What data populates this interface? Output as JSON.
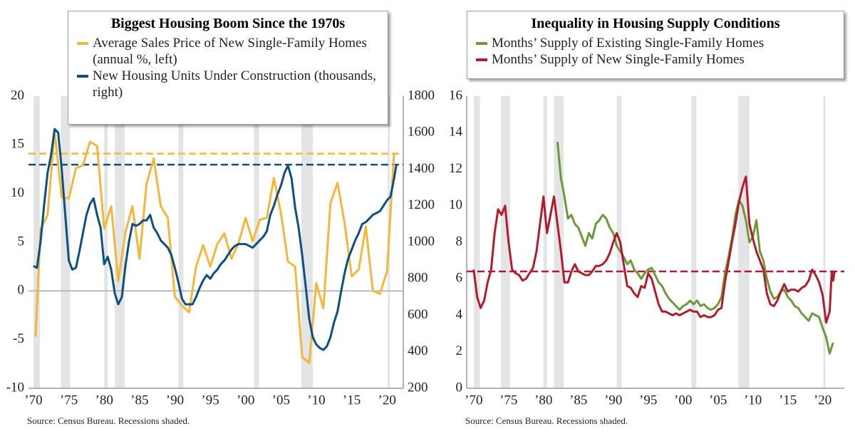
{
  "chart_data": [
    {
      "type": "line",
      "title": "Biggest Housing Boom Since the 1970s",
      "source": "Source: Census Bureau. Recessions shaded.",
      "xlim": [
        1969.3,
        2022.3
      ],
      "xticks": [
        {
          "value": 1970,
          "label": "’70"
        },
        {
          "value": 1975,
          "label": "’75"
        },
        {
          "value": 1980,
          "label": "’80"
        },
        {
          "value": 1985,
          "label": "’85"
        },
        {
          "value": 1990,
          "label": "’90"
        },
        {
          "value": 1995,
          "label": "’95"
        },
        {
          "value": 2000,
          "label": "’00"
        },
        {
          "value": 2005,
          "label": "’05"
        },
        {
          "value": 2010,
          "label": "’10"
        },
        {
          "value": 2015,
          "label": "’15"
        },
        {
          "value": 2020,
          "label": "’20"
        }
      ],
      "ylim": [
        -10,
        20
      ],
      "yticks": [
        -10,
        -5,
        0,
        5,
        10,
        15,
        20
      ],
      "y2lim": [
        200,
        1800
      ],
      "y2ticks": [
        200,
        400,
        600,
        800,
        1000,
        1200,
        1400,
        1600,
        1800
      ],
      "zero_line": true,
      "recessions": [
        {
          "start": 1970.0,
          "end": 1970.9
        },
        {
          "start": 1973.9,
          "end": 1975.2
        },
        {
          "start": 1980.0,
          "end": 1980.5
        },
        {
          "start": 1981.5,
          "end": 1982.9
        },
        {
          "start": 1990.5,
          "end": 1991.2
        },
        {
          "start": 2001.2,
          "end": 2001.9
        },
        {
          "start": 2007.9,
          "end": 2009.5
        },
        {
          "start": 2020.1,
          "end": 2020.4
        }
      ],
      "reference_lines": [
        {
          "value": 14.1,
          "axis": "y",
          "color": "#f3b73b"
        },
        {
          "value": 1425,
          "axis": "y2",
          "color": "#0d4f80"
        }
      ],
      "series": [
        {
          "name": "Average Sales Price of New Single-Family Homes (annual %, left)",
          "color": "#f3b73b",
          "axis": "y",
          "x": [
            1970.3,
            1971,
            1972,
            1973,
            1974,
            1975,
            1976,
            1977,
            1978,
            1979,
            1980,
            1981,
            1982,
            1983,
            1984,
            1985,
            1986,
            1987,
            1988,
            1989,
            1990,
            1991,
            1992,
            1993,
            1994,
            1995,
            1996,
            1997,
            1998,
            1999,
            2000,
            2001,
            2002,
            2003,
            2004,
            2005,
            2006,
            2007,
            2008,
            2009,
            2010,
            2011,
            2012,
            2013,
            2014,
            2015,
            2016,
            2017,
            2018,
            2019,
            2020,
            2021
          ],
          "values": [
            -4.7,
            6.3,
            7.8,
            16.4,
            9.6,
            9.5,
            12.6,
            12.9,
            15.3,
            14.9,
            6.4,
            8.7,
            1.0,
            6.0,
            8.7,
            3.3,
            11.0,
            13.6,
            8.7,
            7.5,
            -0.6,
            -1.5,
            -2.2,
            2.5,
            4.7,
            2.5,
            4.8,
            5.9,
            3.3,
            4.9,
            7.5,
            5.1,
            7.3,
            7.5,
            11.6,
            8.0,
            3.0,
            2.5,
            -6.8,
            -7.4,
            0.8,
            -1.8,
            9.0,
            11.1,
            7.0,
            1.5,
            2.2,
            6.6,
            0.0,
            -0.3,
            2.0,
            14.2
          ]
        },
        {
          "name": "New Housing Units Under Construction (thousands, right)",
          "color": "#0d4f80",
          "axis": "y2",
          "x": [
            1970,
            1970.5,
            1971,
            1971.5,
            1972,
            1972.5,
            1973,
            1973.5,
            1974,
            1974.5,
            1975,
            1975.5,
            1976,
            1976.5,
            1977,
            1977.5,
            1978,
            1978.5,
            1979,
            1979.5,
            1980,
            1980.5,
            1981,
            1981.5,
            1982,
            1982.5,
            1983,
            1983.5,
            1984,
            1984.5,
            1985,
            1985.5,
            1986,
            1986.5,
            1987,
            1987.5,
            1988,
            1988.5,
            1989,
            1989.5,
            1990,
            1990.5,
            1991,
            1991.5,
            1992,
            1992.5,
            1993,
            1993.5,
            1994,
            1994.5,
            1995,
            1995.5,
            1996,
            1996.5,
            1997,
            1997.5,
            1998,
            1998.5,
            1999,
            1999.5,
            2000,
            2000.5,
            2001,
            2001.5,
            2002,
            2002.5,
            2003,
            2003.5,
            2004,
            2004.5,
            2005,
            2005.5,
            2006,
            2006.5,
            2007,
            2007.5,
            2008,
            2008.5,
            2009,
            2009.5,
            2010,
            2010.5,
            2011,
            2011.5,
            2012,
            2012.5,
            2013,
            2013.5,
            2014,
            2014.5,
            2015,
            2015.5,
            2016,
            2016.5,
            2017,
            2017.5,
            2018,
            2018.5,
            2019,
            2019.5,
            2020,
            2020.5,
            2021,
            2021.3
          ],
          "values": [
            870,
            860,
            1000,
            1200,
            1380,
            1480,
            1620,
            1600,
            1400,
            1150,
            900,
            850,
            860,
            950,
            1050,
            1150,
            1210,
            1240,
            1150,
            1080,
            880,
            920,
            850,
            720,
            660,
            700,
            870,
            1000,
            1100,
            1090,
            1100,
            1120,
            1120,
            1150,
            1080,
            1050,
            1010,
            990,
            970,
            930,
            860,
            780,
            690,
            660,
            660,
            660,
            700,
            750,
            790,
            820,
            800,
            830,
            850,
            880,
            900,
            930,
            960,
            980,
            990,
            990,
            990,
            980,
            970,
            990,
            1010,
            1030,
            1060,
            1150,
            1200,
            1260,
            1310,
            1380,
            1420,
            1350,
            1190,
            1080,
            930,
            760,
            580,
            480,
            440,
            420,
            410,
            430,
            480,
            560,
            620,
            730,
            830,
            910,
            960,
            1010,
            1050,
            1100,
            1110,
            1130,
            1150,
            1160,
            1170,
            1200,
            1230,
            1250,
            1350,
            1420
          ]
        }
      ]
    },
    {
      "type": "line",
      "title": "Inequality in Housing Supply Conditions",
      "source": "Source: Census Bureau. Recessions shaded.",
      "xlim": [
        1969,
        2023.1
      ],
      "xticks": [
        {
          "value": 1970,
          "label": "’70"
        },
        {
          "value": 1975,
          "label": "’75"
        },
        {
          "value": 1980,
          "label": "’80"
        },
        {
          "value": 1985,
          "label": "’85"
        },
        {
          "value": 1990,
          "label": "’90"
        },
        {
          "value": 1995,
          "label": "’95"
        },
        {
          "value": 2000,
          "label": "’00"
        },
        {
          "value": 2005,
          "label": "’05"
        },
        {
          "value": 2010,
          "label": "’10"
        },
        {
          "value": 2015,
          "label": "’15"
        },
        {
          "value": 2020,
          "label": "’20"
        }
      ],
      "ylim": [
        0,
        16
      ],
      "yticks": [
        0,
        2,
        4,
        6,
        8,
        10,
        12,
        14,
        16
      ],
      "recessions": [
        {
          "start": 1970.0,
          "end": 1970.9
        },
        {
          "start": 1973.9,
          "end": 1975.2
        },
        {
          "start": 1980.0,
          "end": 1980.5
        },
        {
          "start": 1981.5,
          "end": 1982.9
        },
        {
          "start": 1990.5,
          "end": 1991.2
        },
        {
          "start": 2001.2,
          "end": 2001.9
        },
        {
          "start": 2007.9,
          "end": 2009.5
        },
        {
          "start": 2020.1,
          "end": 2020.4
        }
      ],
      "reference_lines": [
        {
          "value": 6.4,
          "axis": "y",
          "color": "#b01c2e"
        }
      ],
      "series": [
        {
          "name": "Months’ Supply of Existing Single-Family Homes",
          "color": "#6a9a3a",
          "axis": "y",
          "x": [
            1982,
            1982.5,
            1983,
            1983.5,
            1984,
            1984.5,
            1985,
            1985.5,
            1986,
            1986.5,
            1987,
            1987.5,
            1988,
            1988.5,
            1989,
            1989.5,
            1990,
            1990.5,
            1991,
            1991.5,
            1992,
            1992.5,
            1993,
            1993.5,
            1994,
            1994.5,
            1995,
            1995.5,
            1996,
            1996.5,
            1997,
            1997.5,
            1998,
            1998.5,
            1999,
            1999.5,
            2000,
            2000.5,
            2001,
            2001.5,
            2002,
            2002.5,
            2003,
            2003.5,
            2004,
            2004.5,
            2005,
            2005.5,
            2006,
            2006.5,
            2007,
            2007.5,
            2008,
            2008.5,
            2009,
            2009.5,
            2010,
            2010.5,
            2011,
            2011.5,
            2012,
            2012.5,
            2013,
            2013.5,
            2014,
            2014.5,
            2015,
            2015.5,
            2016,
            2016.5,
            2017,
            2017.5,
            2018,
            2018.5,
            2019,
            2019.5,
            2020,
            2020.5,
            2021,
            2021.5
          ],
          "values": [
            13.5,
            11.5,
            10.5,
            9.3,
            9.5,
            9.0,
            8.8,
            8.3,
            7.8,
            8.5,
            8.2,
            9.0,
            9.2,
            9.5,
            9.3,
            8.8,
            8.5,
            7.8,
            7.5,
            7.2,
            6.8,
            7.0,
            6.5,
            6.3,
            6.0,
            6.3,
            6.5,
            6.6,
            6.2,
            5.8,
            5.6,
            5.2,
            4.9,
            4.7,
            4.5,
            4.3,
            4.5,
            4.6,
            4.8,
            4.6,
            4.8,
            4.5,
            4.6,
            4.4,
            4.3,
            4.4,
            4.6,
            5.0,
            6.3,
            7.2,
            8.2,
            9.5,
            10.3,
            10.0,
            9.2,
            8.0,
            8.3,
            9.2,
            7.5,
            7.0,
            6.0,
            5.3,
            4.9,
            5.0,
            5.3,
            5.4,
            5.0,
            4.8,
            4.5,
            4.4,
            4.1,
            3.9,
            3.7,
            4.1,
            4.0,
            3.9,
            3.3,
            2.8,
            1.9,
            2.5
          ]
        },
        {
          "name": "Months’ Supply of New Single-Family Homes",
          "color": "#b01c2e",
          "axis": "y",
          "x": [
            1970,
            1970.5,
            1971,
            1971.5,
            1972,
            1972.5,
            1973,
            1973.5,
            1974,
            1974.5,
            1975,
            1975.5,
            1976,
            1976.5,
            1977,
            1977.5,
            1978,
            1978.5,
            1979,
            1979.5,
            1980,
            1980.5,
            1981,
            1981.5,
            1982,
            1982.5,
            1983,
            1983.5,
            1984,
            1984.5,
            1985,
            1985.5,
            1986,
            1986.5,
            1987,
            1987.5,
            1988,
            1988.5,
            1989,
            1989.5,
            1990,
            1990.5,
            1991,
            1991.5,
            1992,
            1992.5,
            1993,
            1993.5,
            1994,
            1994.5,
            1995,
            1995.5,
            1996,
            1996.5,
            1997,
            1997.5,
            1998,
            1998.5,
            1999,
            1999.5,
            2000,
            2000.5,
            2001,
            2001.5,
            2002,
            2002.5,
            2003,
            2003.5,
            2004,
            2004.5,
            2005,
            2005.5,
            2006,
            2006.5,
            2007,
            2007.5,
            2008,
            2008.5,
            2009,
            2009.5,
            2010,
            2010.5,
            2011,
            2011.5,
            2012,
            2012.5,
            2013,
            2013.5,
            2014,
            2014.5,
            2015,
            2015.5,
            2016,
            2016.5,
            2017,
            2017.5,
            2018,
            2018.5,
            2019,
            2019.5,
            2020,
            2020.5,
            2021,
            2021.3,
            2021.5,
            2021.7
          ],
          "values": [
            6.5,
            5.0,
            4.4,
            4.8,
            5.8,
            6.5,
            8.5,
            9.8,
            9.5,
            10.0,
            8.0,
            6.5,
            6.3,
            6.2,
            5.9,
            6.0,
            6.3,
            6.6,
            7.5,
            9.0,
            10.5,
            8.5,
            9.5,
            10.5,
            9.0,
            7.5,
            5.8,
            5.8,
            6.4,
            6.8,
            6.4,
            6.3,
            6.2,
            6.2,
            6.4,
            6.7,
            6.7,
            6.8,
            7.0,
            7.4,
            8.0,
            8.5,
            8.0,
            6.8,
            5.6,
            5.5,
            5.2,
            5.0,
            5.6,
            5.5,
            6.3,
            6.0,
            5.3,
            4.6,
            4.2,
            4.2,
            4.1,
            4.0,
            4.1,
            4.0,
            4.1,
            4.2,
            4.3,
            4.2,
            4.2,
            3.9,
            4.0,
            3.9,
            3.9,
            4.0,
            4.3,
            4.4,
            5.8,
            6.9,
            8.0,
            9.0,
            10.2,
            11.0,
            11.6,
            9.0,
            8.2,
            7.5,
            7.0,
            6.5,
            5.2,
            4.6,
            4.5,
            4.8,
            5.3,
            5.7,
            5.3,
            5.4,
            5.4,
            5.3,
            5.5,
            5.6,
            5.9,
            6.5,
            6.2,
            5.8,
            5.1,
            3.6,
            4.2,
            6.4,
            5.9,
            6.4
          ]
        }
      ]
    }
  ]
}
